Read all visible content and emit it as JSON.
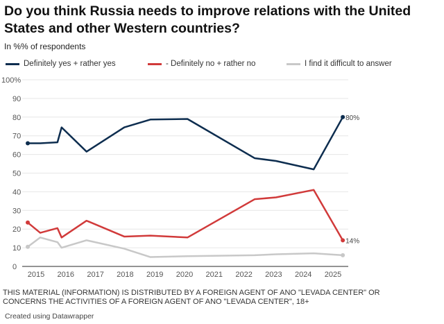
{
  "title": "Do you think Russia needs to improve relations with the United States and other Western countries?",
  "subtitle": "In %% of respondents",
  "note": "THIS MATERIAL (INFORMATION) IS DISTRIBUTED BY A FOREIGN AGENT OF ANO \"LEVADA CENTER\" OR CONCERNS THE ACTIVITIES OF A FOREIGN AGENT OF ANO \"LEVADA CENTER\", 18+",
  "credit": "Created using Datawrapper",
  "chart_data": {
    "type": "line",
    "legend_position": "top",
    "grid": true,
    "ylim": [
      0,
      100
    ],
    "xlim": [
      2014.5,
      2025.5
    ],
    "yticks": [
      "0",
      "10",
      "20",
      "30",
      "40",
      "50",
      "60",
      "70",
      "80",
      "90",
      "100%"
    ],
    "xticks": [
      "2015",
      "2016",
      "2017",
      "2018",
      "2019",
      "2020",
      "2021",
      "2022",
      "2023",
      "2024",
      "2025"
    ],
    "x": [
      2014.72,
      2015.14,
      2015.72,
      2015.86,
      2016.7,
      2017.97,
      2018.85,
      2020.1,
      2022.36,
      2023.08,
      2024.35,
      2025.33
    ],
    "series": [
      {
        "name": "Definitely yes + rather yes",
        "color": "#0d2d4f",
        "values": [
          66,
          66,
          66.5,
          74.5,
          61.5,
          74.5,
          78.7,
          79,
          58,
          56.5,
          52,
          80
        ],
        "end_label": "80%"
      },
      {
        "name": "- Definitely no + rather no",
        "color": "#d13a3a",
        "values": [
          23.5,
          18,
          20.5,
          15.5,
          24.5,
          16,
          16.5,
          15.5,
          36,
          37,
          41,
          14
        ],
        "end_label": "14%"
      },
      {
        "name": "I find it difficult to answer",
        "color": "#c8c8c8",
        "values": [
          10.5,
          15.5,
          13,
          10,
          14,
          9.5,
          5,
          5.5,
          6,
          6.5,
          7,
          6
        ],
        "end_label": ""
      }
    ]
  }
}
